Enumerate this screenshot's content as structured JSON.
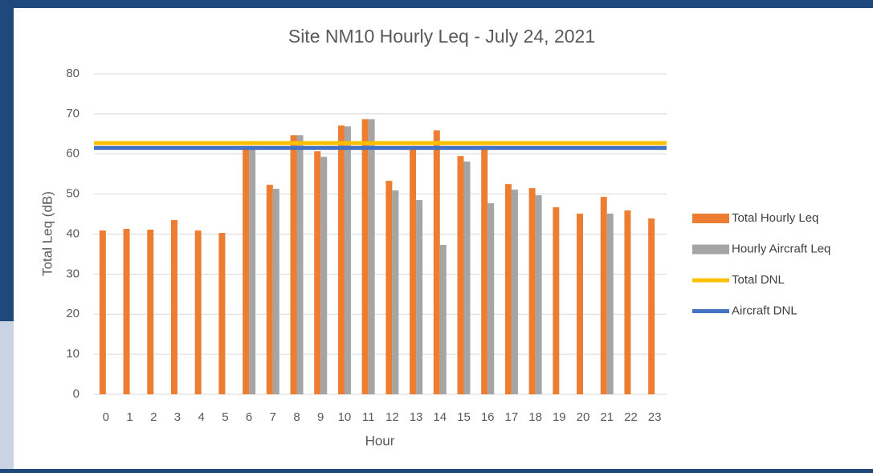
{
  "chart_data": {
    "type": "bar",
    "title": "Site NM10 Hourly Leq - July 24, 2021",
    "x_label": "Hour",
    "y_label": "Total Leq (dB)",
    "categories": [
      "0",
      "1",
      "2",
      "3",
      "4",
      "5",
      "6",
      "7",
      "8",
      "9",
      "10",
      "11",
      "12",
      "13",
      "14",
      "15",
      "16",
      "17",
      "18",
      "19",
      "20",
      "21",
      "22",
      "23"
    ],
    "series": [
      {
        "name": "Total Hourly Leq",
        "kind": "bar",
        "color": "#ed7d31",
        "values": [
          40.9,
          41.3,
          41.1,
          43.5,
          40.9,
          40.3,
          62,
          52.3,
          64.7,
          60.7,
          67.1,
          68.7,
          53.3,
          62,
          65.9,
          59.5,
          62,
          52.5,
          51.5,
          46.7,
          45.1,
          49.3,
          45.9,
          43.9
        ]
      },
      {
        "name": "Hourly Aircraft Leq",
        "kind": "bar",
        "color": "#a5a5a5",
        "values": [
          null,
          null,
          null,
          null,
          null,
          null,
          62,
          51.3,
          64.7,
          59.3,
          66.9,
          68.7,
          50.9,
          48.5,
          37.3,
          58.1,
          47.7,
          51.1,
          49.7,
          null,
          null,
          45.1,
          null,
          null
        ]
      },
      {
        "name": "Total DNL",
        "kind": "line",
        "color": "#ffc000",
        "value": 62.7
      },
      {
        "name": "Aircraft DNL",
        "kind": "line",
        "color": "#4472c4",
        "value": 61.5
      }
    ],
    "ylim": [
      0,
      80
    ],
    "yticks": [
      0,
      10,
      20,
      30,
      40,
      50,
      60,
      70,
      80
    ],
    "grid": true,
    "legend": "right"
  }
}
